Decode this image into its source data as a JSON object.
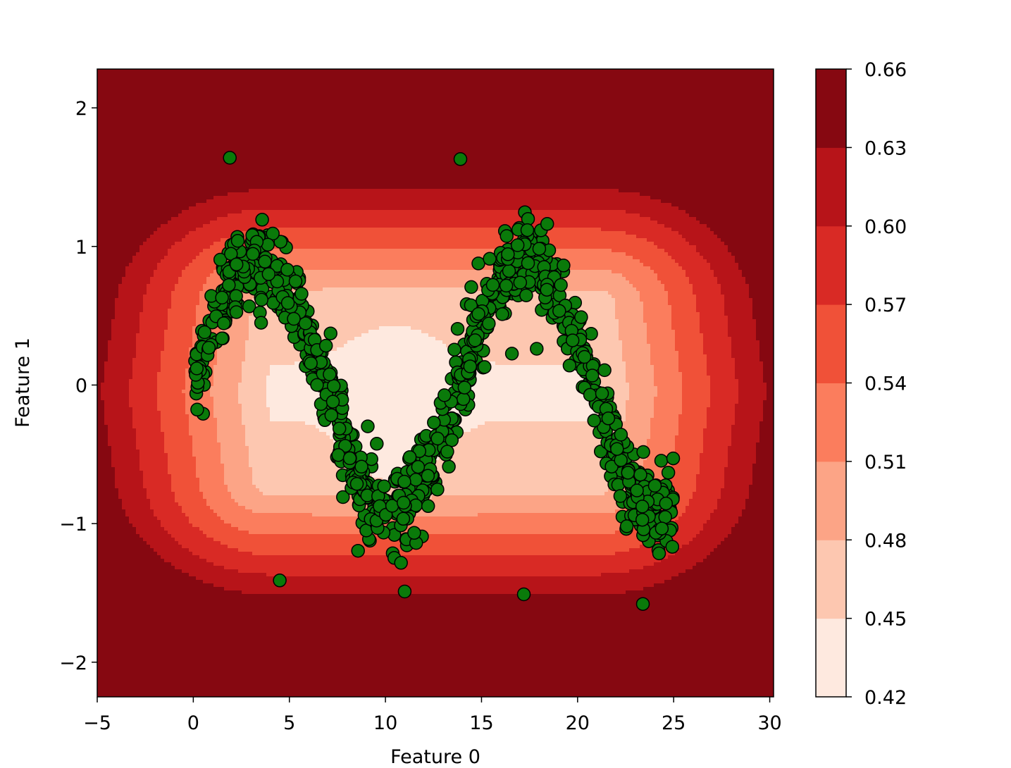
{
  "chart_data": {
    "type": "scatter",
    "subtype": "contourf with scatter overlay",
    "title": "",
    "xlabel": "Feature 0",
    "ylabel": "Feature 1",
    "xlim": [
      -5,
      30.2
    ],
    "ylim": [
      -2.25,
      2.28
    ],
    "xticks": [
      -5,
      0,
      5,
      10,
      15,
      20,
      25,
      30
    ],
    "xtick_labels": [
      "−5",
      "0",
      "5",
      "10",
      "15",
      "20",
      "25",
      "30"
    ],
    "yticks": [
      -2,
      -1,
      0,
      1,
      2
    ],
    "ytick_labels": [
      "−2",
      "−1",
      "0",
      "1",
      "2"
    ],
    "grid": false,
    "colormap": "Reds",
    "point_color": "#0a7a0a",
    "point_edge_color": "#000000",
    "contour_levels": [
      0.42,
      0.45,
      0.48,
      0.51,
      0.54,
      0.57,
      0.6,
      0.63,
      0.66
    ],
    "level_colors": [
      "#fee9df",
      "#fdc7b0",
      "#fca486",
      "#fb7d5d",
      "#f05138",
      "#d92a25",
      "#b71419",
      "#860811"
    ],
    "colorbar": {
      "ticks": [
        0.42,
        0.45,
        0.48,
        0.51,
        0.54,
        0.57,
        0.6,
        0.63,
        0.66
      ],
      "tick_labels": [
        "0.42",
        "0.45",
        "0.48",
        "0.51",
        "0.54",
        "0.57",
        "0.60",
        "0.63",
        "0.66"
      ]
    },
    "series": [
      {
        "description": "noisy sine wave samples, y ≈ sin(x/2.2)·0.9 + noise, x from 0 to 25",
        "x_range": [
          0,
          25
        ],
        "approx_point_count": 1000,
        "noise_sd": 0.15,
        "outliers": [
          [
            1.9,
            1.64
          ],
          [
            13.9,
            1.63
          ],
          [
            4.5,
            -1.41
          ],
          [
            11.0,
            -1.49
          ],
          [
            17.2,
            -1.51
          ],
          [
            23.4,
            -1.58
          ]
        ]
      }
    ]
  }
}
